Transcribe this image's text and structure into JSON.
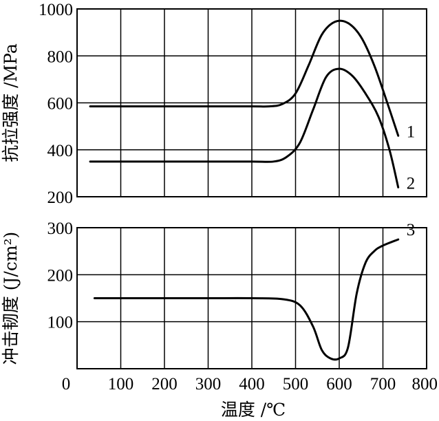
{
  "chart_data": [
    {
      "type": "line",
      "ylabel": "抗拉强度 /MPa",
      "xlim": [
        0,
        800
      ],
      "ylim": [
        200,
        1000
      ],
      "yticks": [
        "200",
        "400",
        "600",
        "800",
        "1000"
      ],
      "grid": true,
      "series": [
        {
          "name": "1",
          "x": [
            30,
            100,
            200,
            300,
            400,
            440,
            470,
            500,
            530,
            560,
            590,
            620,
            650,
            680,
            710,
            735
          ],
          "y": [
            585,
            585,
            585,
            585,
            585,
            585,
            595,
            640,
            760,
            890,
            945,
            940,
            880,
            760,
            600,
            460
          ]
        },
        {
          "name": "2",
          "x": [
            30,
            100,
            200,
            300,
            400,
            450,
            480,
            510,
            540,
            570,
            600,
            630,
            660,
            690,
            715,
            735
          ],
          "y": [
            350,
            350,
            350,
            350,
            350,
            350,
            370,
            430,
            570,
            710,
            745,
            715,
            640,
            540,
            400,
            240
          ]
        }
      ]
    },
    {
      "type": "line",
      "xlabel": "温度 /℃",
      "ylabel": "冲击韧度 (J/cm²)",
      "xlim": [
        0,
        800
      ],
      "ylim": [
        0,
        300
      ],
      "yticks": [
        "100",
        "200",
        "300"
      ],
      "xticks": [
        "0",
        "100",
        "200",
        "300",
        "400",
        "500",
        "600",
        "700",
        "800"
      ],
      "grid": true,
      "series": [
        {
          "name": "3",
          "x": [
            40,
            100,
            200,
            300,
            400,
            470,
            510,
            540,
            560,
            580,
            600,
            620,
            640,
            660,
            680,
            700,
            735
          ],
          "y": [
            150,
            150,
            150,
            150,
            150,
            148,
            135,
            90,
            40,
            22,
            22,
            45,
            160,
            225,
            250,
            262,
            275
          ]
        }
      ]
    }
  ]
}
